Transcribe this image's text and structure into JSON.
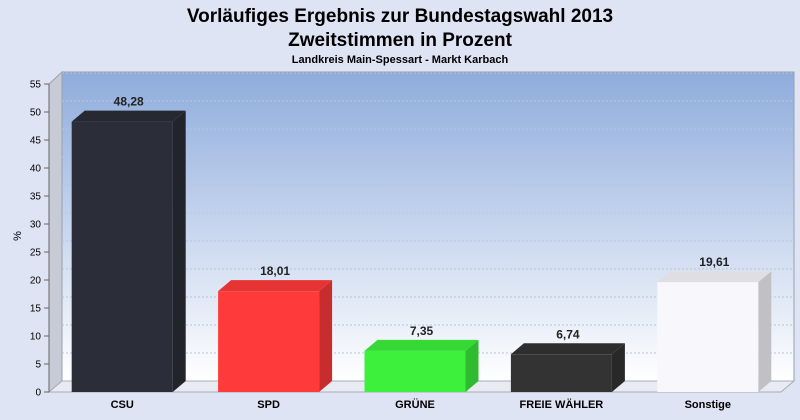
{
  "chart_data": {
    "type": "bar",
    "title": "Vorläufiges Ergebnis zur Bundestagswahl 2013",
    "title2": "Zweitstimmen in Prozent",
    "subtitle": "Landkreis Main-Spessart - Markt Karbach",
    "ylabel": "%",
    "ylim": [
      0,
      55
    ],
    "yticks": [
      "0",
      "5",
      "10",
      "15",
      "20",
      "25",
      "30",
      "35",
      "40",
      "45",
      "50",
      "55"
    ],
    "grid": true,
    "categories": [
      "CSU",
      "SPD",
      "GRÜNE",
      "FREIE WÄHLER",
      "Sonstige"
    ],
    "values": [
      48.28,
      18.01,
      7.35,
      6.74,
      19.61
    ],
    "value_labels": [
      "48,28",
      "18,01",
      "7,35",
      "6,74",
      "19,61"
    ],
    "colors": [
      "#2b2e38",
      "#ff3a3a",
      "#3cf03c",
      "#333333",
      "#f8f8fc"
    ]
  }
}
